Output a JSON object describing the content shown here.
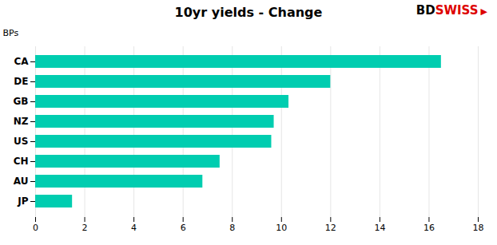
{
  "chart_data": {
    "type": "bar",
    "orientation": "horizontal",
    "title": "10yr yields - Change",
    "ylabel": "BPs",
    "annotations": [
      {
        "text": "BD",
        "color": "#000000"
      },
      {
        "text": "SWISS",
        "color": "#dd0000"
      },
      {
        "text": "▶",
        "color": "#dd0000"
      }
    ],
    "categories": [
      "CA",
      "DE",
      "GB",
      "NZ",
      "US",
      "CH",
      "AU",
      "JP"
    ],
    "values": [
      16.5,
      12.0,
      10.3,
      9.7,
      9.6,
      7.5,
      6.8,
      1.5
    ],
    "color": "#00CDB0",
    "xlim": [
      0,
      18
    ],
    "xticks": [
      0,
      2,
      4,
      6,
      8,
      10,
      12,
      14,
      16,
      18
    ],
    "grid": true
  }
}
